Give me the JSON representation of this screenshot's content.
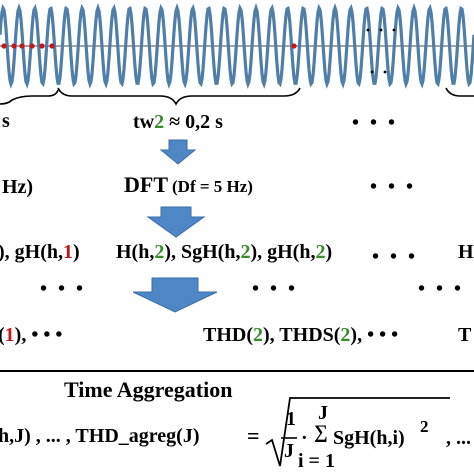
{
  "wave": {
    "cycles": 30,
    "color": "#4f7ea8",
    "marker_color": "#c0181c"
  },
  "row1": {
    "left_label": "s",
    "window_label_prefix": "tw",
    "window_index": "2",
    "window_label_suffix": " ≈ 0,2 s",
    "dots": "• • •"
  },
  "row2": {
    "left_label": "Hz)",
    "dft_label": "DFT",
    "dft_param": "(Df = 5 Hz)",
    "dots": "• • •"
  },
  "row3": {
    "left_prefix": "), gH(h,",
    "left_index": "1",
    "left_suffix": ")",
    "mid_parts": [
      "H(h,",
      "2",
      "), SgH(h,",
      "2",
      "), gH(h,",
      "2",
      ")"
    ],
    "dots": "• • •",
    "right_label": "H"
  },
  "row4": {
    "left_dots": "• • •",
    "mid_dots": "• • •",
    "right_dots": "• • •"
  },
  "row5": {
    "left_prefix": "(",
    "left_index": "1",
    "left_suffix": "), • • •",
    "mid_parts": [
      "THD(",
      "2",
      "), THDS(",
      "2",
      "), • • •"
    ],
    "right_label": "T"
  },
  "aggregation": {
    "title": "Time Aggregation",
    "left_formula": "h,J) , ... , THD_agreg(J)",
    "equals": "=",
    "frac_num": "1",
    "frac_den": "J",
    "dot": "·",
    "sum_upper": "J",
    "sum_symbol": "∑",
    "sum_term": "SgH(h,i)",
    "exponent": "2",
    "sum_lower": "i = 1",
    "trailing": ", ..."
  },
  "colors": {
    "arrow": "#4f86c6",
    "green": "#3b8a2e",
    "red": "#c0181c",
    "wave": "#4f7ea8"
  }
}
